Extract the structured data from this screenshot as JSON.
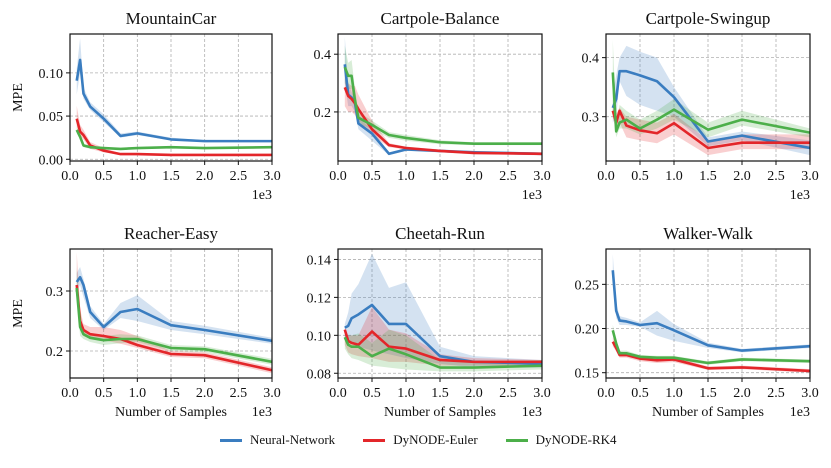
{
  "legend": [
    {
      "name": "Neural-Network",
      "color": "#3a7dc0"
    },
    {
      "name": "DyNODE-Euler",
      "color": "#e3262a"
    },
    {
      "name": "DyNODE-RK4",
      "color": "#4caf4a"
    }
  ],
  "chart_data": [
    {
      "type": "line",
      "title": "MountainCar",
      "xlabel": "",
      "ylabel": "MPE",
      "x_offset_label": "1e3",
      "xlim": [
        0,
        3.0
      ],
      "ylim": [
        -0.002,
        0.145
      ],
      "xticks": [
        "0.0",
        "0.5",
        "1.0",
        "1.5",
        "2.0",
        "2.5",
        "3.0"
      ],
      "yticks": [
        {
          "v": 0.0,
          "label": "0.00"
        },
        {
          "v": 0.05,
          "label": "0.05"
        },
        {
          "v": 0.1,
          "label": "0.10"
        }
      ],
      "grid": true,
      "x": [
        0.1,
        0.15,
        0.2,
        0.3,
        0.5,
        0.75,
        1.0,
        1.5,
        2.0,
        3.0
      ],
      "series": [
        {
          "name": "Neural-Network",
          "values": [
            0.091,
            0.115,
            0.076,
            0.061,
            0.047,
            0.027,
            0.03,
            0.023,
            0.021,
            0.021
          ],
          "lower": [
            0.075,
            0.1,
            0.07,
            0.057,
            0.043,
            0.025,
            0.028,
            0.022,
            0.02,
            0.02
          ],
          "upper": [
            0.105,
            0.14,
            0.083,
            0.066,
            0.052,
            0.03,
            0.032,
            0.025,
            0.022,
            0.022
          ]
        },
        {
          "name": "DyNODE-Euler",
          "values": [
            0.047,
            0.032,
            0.028,
            0.016,
            0.01,
            0.006,
            0.006,
            0.005,
            0.005,
            0.005
          ],
          "lower": [
            0.038,
            0.027,
            0.023,
            0.012,
            0.008,
            0.005,
            0.005,
            0.004,
            0.004,
            0.004
          ],
          "upper": [
            0.062,
            0.04,
            0.034,
            0.02,
            0.013,
            0.007,
            0.007,
            0.006,
            0.006,
            0.006
          ]
        },
        {
          "name": "DyNODE-RK4",
          "values": [
            0.034,
            0.026,
            0.016,
            0.014,
            0.013,
            0.012,
            0.013,
            0.014,
            0.013,
            0.014
          ],
          "lower": [
            0.03,
            0.023,
            0.014,
            0.012,
            0.012,
            0.011,
            0.012,
            0.013,
            0.012,
            0.013
          ],
          "upper": [
            0.038,
            0.029,
            0.018,
            0.016,
            0.014,
            0.013,
            0.014,
            0.015,
            0.014,
            0.015
          ]
        }
      ]
    },
    {
      "type": "line",
      "title": "Cartpole-Balance",
      "xlabel": "",
      "ylabel": "",
      "x_offset_label": "1e3",
      "xlim": [
        0,
        3.0
      ],
      "ylim": [
        0.03,
        0.47
      ],
      "xticks": [
        "0.0",
        "0.5",
        "1.0",
        "1.5",
        "2.0",
        "2.5",
        "3.0"
      ],
      "yticks": [
        {
          "v": 0.2,
          "label": "0.2"
        },
        {
          "v": 0.4,
          "label": "0.4"
        }
      ],
      "grid": true,
      "x": [
        0.1,
        0.15,
        0.2,
        0.25,
        0.3,
        0.5,
        0.75,
        1.0,
        1.5,
        2.0,
        3.0
      ],
      "series": [
        {
          "name": "Neural-Network",
          "values": [
            0.365,
            0.26,
            0.25,
            0.23,
            0.16,
            0.125,
            0.055,
            0.07,
            0.065,
            0.06,
            0.055
          ],
          "lower": [
            0.3,
            0.22,
            0.22,
            0.2,
            0.14,
            0.1,
            0.05,
            0.065,
            0.06,
            0.055,
            0.05
          ],
          "upper": [
            0.46,
            0.3,
            0.27,
            0.25,
            0.18,
            0.14,
            0.06,
            0.075,
            0.07,
            0.065,
            0.06
          ]
        },
        {
          "name": "DyNODE-Euler",
          "values": [
            0.285,
            0.255,
            0.245,
            0.23,
            0.21,
            0.14,
            0.085,
            0.075,
            0.065,
            0.058,
            0.055
          ],
          "lower": [
            0.22,
            0.2,
            0.2,
            0.19,
            0.17,
            0.12,
            0.078,
            0.07,
            0.06,
            0.053,
            0.05
          ],
          "upper": [
            0.33,
            0.3,
            0.29,
            0.29,
            0.26,
            0.17,
            0.092,
            0.08,
            0.07,
            0.063,
            0.06
          ]
        },
        {
          "name": "DyNODE-RK4",
          "values": [
            0.355,
            0.325,
            0.325,
            0.24,
            0.18,
            0.155,
            0.12,
            0.11,
            0.095,
            0.09,
            0.09
          ],
          "lower": [
            0.3,
            0.28,
            0.28,
            0.2,
            0.16,
            0.14,
            0.11,
            0.1,
            0.088,
            0.085,
            0.085
          ],
          "upper": [
            0.43,
            0.37,
            0.38,
            0.28,
            0.2,
            0.17,
            0.13,
            0.12,
            0.102,
            0.095,
            0.095
          ]
        }
      ]
    },
    {
      "type": "line",
      "title": "Cartpole-Swingup",
      "xlabel": "",
      "ylabel": "",
      "x_offset_label": "1e3",
      "xlim": [
        0,
        3.0
      ],
      "ylim": [
        0.225,
        0.44
      ],
      "xticks": [
        "0.0",
        "0.5",
        "1.0",
        "1.5",
        "2.0",
        "2.5",
        "3.0"
      ],
      "yticks": [
        {
          "v": 0.3,
          "label": "0.3"
        },
        {
          "v": 0.4,
          "label": "0.4"
        }
      ],
      "grid": true,
      "x": [
        0.1,
        0.15,
        0.2,
        0.3,
        0.5,
        0.75,
        1.0,
        1.5,
        2.0,
        3.0
      ],
      "series": [
        {
          "name": "Neural-Network",
          "values": [
            0.315,
            0.33,
            0.377,
            0.377,
            0.37,
            0.36,
            0.333,
            0.258,
            0.268,
            0.247
          ],
          "lower": [
            0.29,
            0.3,
            0.36,
            0.335,
            0.32,
            0.31,
            0.3,
            0.25,
            0.26,
            0.235
          ],
          "upper": [
            0.34,
            0.37,
            0.4,
            0.42,
            0.41,
            0.4,
            0.35,
            0.265,
            0.275,
            0.26
          ]
        },
        {
          "name": "DyNODE-Euler",
          "values": [
            0.31,
            0.29,
            0.31,
            0.285,
            0.277,
            0.272,
            0.289,
            0.247,
            0.256,
            0.256
          ],
          "lower": [
            0.3,
            0.275,
            0.29,
            0.265,
            0.26,
            0.255,
            0.27,
            0.235,
            0.245,
            0.245
          ],
          "upper": [
            0.32,
            0.305,
            0.315,
            0.3,
            0.295,
            0.29,
            0.305,
            0.26,
            0.27,
            0.27
          ]
        },
        {
          "name": "DyNODE-RK4",
          "values": [
            0.375,
            0.275,
            0.29,
            0.295,
            0.28,
            0.295,
            0.312,
            0.278,
            0.295,
            0.273
          ],
          "lower": [
            0.31,
            0.265,
            0.28,
            0.28,
            0.27,
            0.28,
            0.295,
            0.265,
            0.285,
            0.265
          ],
          "upper": [
            0.43,
            0.29,
            0.32,
            0.31,
            0.295,
            0.31,
            0.33,
            0.29,
            0.31,
            0.28
          ]
        }
      ]
    },
    {
      "type": "line",
      "title": "Reacher-Easy",
      "xlabel": "Number of Samples",
      "ylabel": "MPE",
      "x_offset_label": "1e3",
      "xlim": [
        0,
        3.0
      ],
      "ylim": [
        0.155,
        0.37
      ],
      "xticks": [
        "0.0",
        "0.5",
        "1.0",
        "1.5",
        "2.0",
        "2.5",
        "3.0"
      ],
      "yticks": [
        {
          "v": 0.2,
          "label": "0.2"
        },
        {
          "v": 0.3,
          "label": "0.3"
        }
      ],
      "grid": true,
      "x": [
        0.1,
        0.15,
        0.2,
        0.3,
        0.5,
        0.75,
        1.0,
        1.5,
        2.0,
        3.0
      ],
      "series": [
        {
          "name": "Neural-Network",
          "values": [
            0.315,
            0.323,
            0.31,
            0.265,
            0.24,
            0.265,
            0.27,
            0.243,
            0.235,
            0.217
          ],
          "lower": [
            0.3,
            0.31,
            0.29,
            0.255,
            0.235,
            0.255,
            0.25,
            0.235,
            0.228,
            0.212
          ],
          "upper": [
            0.33,
            0.34,
            0.32,
            0.275,
            0.245,
            0.28,
            0.293,
            0.25,
            0.242,
            0.222
          ]
        },
        {
          "name": "DyNODE-Euler",
          "values": [
            0.31,
            0.25,
            0.235,
            0.228,
            0.225,
            0.22,
            0.21,
            0.195,
            0.193,
            0.168
          ],
          "lower": [
            0.295,
            0.235,
            0.225,
            0.22,
            0.218,
            0.212,
            0.205,
            0.19,
            0.188,
            0.163
          ],
          "upper": [
            0.365,
            0.27,
            0.245,
            0.24,
            0.24,
            0.235,
            0.225,
            0.2,
            0.198,
            0.173
          ]
        },
        {
          "name": "DyNODE-RK4",
          "values": [
            0.305,
            0.24,
            0.228,
            0.222,
            0.218,
            0.22,
            0.22,
            0.205,
            0.203,
            0.182
          ],
          "lower": [
            0.29,
            0.225,
            0.22,
            0.215,
            0.21,
            0.213,
            0.215,
            0.2,
            0.198,
            0.177
          ],
          "upper": [
            0.34,
            0.255,
            0.235,
            0.23,
            0.225,
            0.228,
            0.226,
            0.21,
            0.208,
            0.187
          ]
        }
      ]
    },
    {
      "type": "line",
      "title": "Cheetah-Run",
      "xlabel": "Number of Samples",
      "ylabel": "",
      "x_offset_label": "1e3",
      "xlim": [
        0,
        3.0
      ],
      "ylim": [
        0.0775,
        0.1455
      ],
      "xticks": [
        "0.0",
        "0.5",
        "1.0",
        "1.5",
        "2.0",
        "2.5",
        "3.0"
      ],
      "yticks": [
        {
          "v": 0.08,
          "label": "0.08"
        },
        {
          "v": 0.1,
          "label": "0.10"
        },
        {
          "v": 0.12,
          "label": "0.12"
        },
        {
          "v": 0.14,
          "label": "0.14"
        }
      ],
      "grid": true,
      "x": [
        0.1,
        0.15,
        0.2,
        0.3,
        0.5,
        0.75,
        1.0,
        1.5,
        2.0,
        3.0
      ],
      "series": [
        {
          "name": "Neural-Network",
          "values": [
            0.104,
            0.105,
            0.109,
            0.111,
            0.116,
            0.106,
            0.106,
            0.089,
            0.086,
            0.085
          ],
          "lower": [
            0.098,
            0.097,
            0.096,
            0.094,
            0.092,
            0.09,
            0.088,
            0.085,
            0.083,
            0.083
          ],
          "upper": [
            0.106,
            0.112,
            0.122,
            0.127,
            0.143,
            0.125,
            0.128,
            0.094,
            0.089,
            0.087
          ]
        },
        {
          "name": "DyNODE-Euler",
          "values": [
            0.103,
            0.097,
            0.096,
            0.095,
            0.102,
            0.094,
            0.093,
            0.087,
            0.086,
            0.086
          ],
          "lower": [
            0.095,
            0.091,
            0.09,
            0.089,
            0.088,
            0.086,
            0.086,
            0.084,
            0.084,
            0.084
          ],
          "upper": [
            0.104,
            0.1,
            0.1,
            0.1,
            0.115,
            0.103,
            0.101,
            0.09,
            0.088,
            0.087
          ]
        },
        {
          "name": "DyNODE-RK4",
          "values": [
            0.099,
            0.095,
            0.094,
            0.094,
            0.089,
            0.093,
            0.09,
            0.083,
            0.083,
            0.084
          ],
          "lower": [
            0.093,
            0.09,
            0.088,
            0.087,
            0.084,
            0.083,
            0.082,
            0.081,
            0.081,
            0.082
          ],
          "upper": [
            0.1,
            0.1,
            0.1,
            0.101,
            0.096,
            0.103,
            0.1,
            0.087,
            0.086,
            0.087
          ]
        }
      ]
    },
    {
      "type": "line",
      "title": "Walker-Walk",
      "xlabel": "Number of Samples",
      "ylabel": "",
      "x_offset_label": "1e3",
      "xlim": [
        0,
        3.0
      ],
      "ylim": [
        0.144,
        0.29
      ],
      "xticks": [
        "0.0",
        "0.5",
        "1.0",
        "1.5",
        "2.0",
        "2.5",
        "3.0"
      ],
      "yticks": [
        {
          "v": 0.15,
          "label": "0.15"
        },
        {
          "v": 0.2,
          "label": "0.20"
        },
        {
          "v": 0.25,
          "label": "0.25"
        }
      ],
      "grid": true,
      "x": [
        0.1,
        0.15,
        0.2,
        0.3,
        0.5,
        0.75,
        1.0,
        1.5,
        2.0,
        3.0
      ],
      "series": [
        {
          "name": "Neural-Network",
          "values": [
            0.266,
            0.22,
            0.209,
            0.208,
            0.204,
            0.206,
            0.198,
            0.181,
            0.175,
            0.18
          ],
          "lower": [
            0.255,
            0.212,
            0.204,
            0.204,
            0.202,
            0.192,
            0.186,
            0.178,
            0.173,
            0.178
          ],
          "upper": [
            0.284,
            0.228,
            0.214,
            0.212,
            0.207,
            0.22,
            0.205,
            0.184,
            0.177,
            0.182
          ]
        },
        {
          "name": "DyNODE-Euler",
          "values": [
            0.185,
            0.178,
            0.17,
            0.17,
            0.166,
            0.164,
            0.165,
            0.155,
            0.156,
            0.152
          ],
          "lower": [
            0.18,
            0.174,
            0.167,
            0.167,
            0.163,
            0.161,
            0.162,
            0.153,
            0.154,
            0.15
          ],
          "upper": [
            0.19,
            0.182,
            0.174,
            0.173,
            0.169,
            0.167,
            0.168,
            0.157,
            0.158,
            0.154
          ]
        },
        {
          "name": "DyNODE-RK4",
          "values": [
            0.198,
            0.183,
            0.172,
            0.172,
            0.168,
            0.167,
            0.167,
            0.161,
            0.165,
            0.163
          ],
          "lower": [
            0.194,
            0.18,
            0.17,
            0.17,
            0.166,
            0.165,
            0.165,
            0.159,
            0.163,
            0.161
          ],
          "upper": [
            0.204,
            0.187,
            0.175,
            0.175,
            0.17,
            0.169,
            0.169,
            0.163,
            0.167,
            0.165
          ]
        }
      ]
    }
  ]
}
